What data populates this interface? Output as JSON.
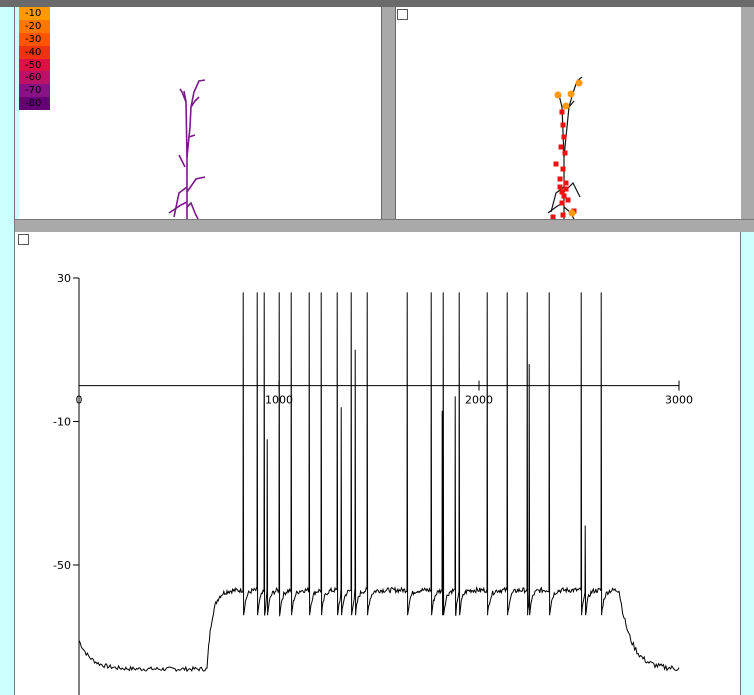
{
  "shape_legend": {
    "labels": [
      "-10",
      "-20",
      "-30",
      "-40",
      "-50",
      "-60",
      "-70",
      "-80"
    ],
    "colors": [
      "#ff9900",
      "#ff7700",
      "#ff5500",
      "#ee3311",
      "#dd1144",
      "#bb1166",
      "#881188",
      "#660077"
    ]
  },
  "chart_data": {
    "type": "line",
    "x_ticks": [
      "0",
      "1000",
      "2000",
      "3000"
    ],
    "y_ticks": [
      "30",
      "-10",
      "-50"
    ],
    "xlim": [
      0,
      3000
    ],
    "ylim": [
      -85,
      30
    ],
    "x_axis_at_y": 0,
    "rest_pre": -71,
    "rest_post": -79,
    "step_start": 640,
    "step_end": 2700,
    "plateau": -57,
    "spike_peak": 26,
    "spike_trough": -64,
    "spikes": [
      820,
      890,
      925,
      1000,
      1060,
      1150,
      1210,
      1290,
      1360,
      1440,
      1640,
      1760,
      1820,
      1900,
      2040,
      2140,
      2240,
      2350,
      2510,
      2610
    ],
    "partials": [
      {
        "x": 940,
        "peak": -15
      },
      {
        "x": 1310,
        "peak": -6
      },
      {
        "x": 1380,
        "peak": 10
      },
      {
        "x": 1815,
        "peak": -7
      },
      {
        "x": 1880,
        "peak": -3
      },
      {
        "x": 2250,
        "peak": 6
      },
      {
        "x": 2530,
        "peak": -39
      }
    ]
  }
}
